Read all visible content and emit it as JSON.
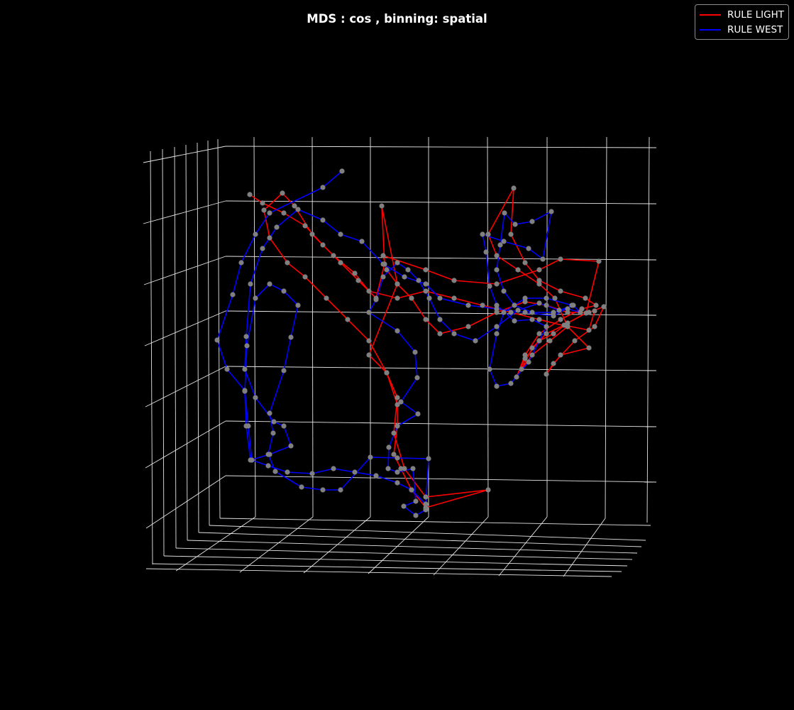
{
  "chart_data": {
    "type": "line",
    "projection": "3d",
    "title": "MDS : cos , binning: spatial",
    "xlabel": "",
    "ylabel": "",
    "zlabel": "",
    "grid": true,
    "background": "#000000",
    "point_color": "#808080",
    "legend_position": "top-right",
    "series": [
      {
        "name": "RULE LIGHT",
        "color": "#ff0000",
        "points": [
          [
            352,
            274
          ],
          [
            370,
            286
          ],
          [
            400,
            300
          ],
          [
            430,
            318
          ],
          [
            455,
            345
          ],
          [
            480,
            370
          ],
          [
            505,
            395
          ],
          [
            530,
            420
          ],
          [
            542,
            372
          ],
          [
            538,
            290
          ],
          [
            560,
            400
          ],
          [
            520,
            500
          ],
          [
            545,
            525
          ],
          [
            560,
            570
          ],
          [
            560,
            600
          ],
          [
            555,
            640
          ],
          [
            565,
            660
          ],
          [
            580,
            690
          ],
          [
            600,
            715
          ],
          [
            688,
            690
          ],
          [
            600,
            700
          ],
          [
            570,
            660
          ],
          [
            555,
            610
          ],
          [
            560,
            560
          ],
          [
            545,
            525
          ],
          [
            520,
            480
          ],
          [
            490,
            450
          ],
          [
            460,
            420
          ],
          [
            430,
            390
          ],
          [
            405,
            370
          ],
          [
            380,
            335
          ],
          [
            372,
            296
          ],
          [
            398,
            272
          ],
          [
            415,
            290
          ],
          [
            440,
            330
          ],
          [
            470,
            360
          ],
          [
            500,
            385
          ],
          [
            520,
            410
          ],
          [
            560,
            420
          ],
          [
            600,
            410
          ],
          [
            640,
            420
          ],
          [
            680,
            430
          ],
          [
            720,
            440
          ],
          [
            760,
            450
          ],
          [
            800,
            460
          ],
          [
            830,
            490
          ],
          [
            790,
            500
          ],
          [
            770,
            527
          ],
          [
            780,
            512
          ],
          [
            810,
            480
          ],
          [
            838,
            460
          ],
          [
            851,
            432
          ],
          [
            830,
            440
          ],
          [
            800,
            440
          ],
          [
            770,
            430
          ],
          [
            740,
            425
          ],
          [
            700,
            440
          ],
          [
            660,
            460
          ],
          [
            620,
            470
          ],
          [
            600,
            450
          ],
          [
            580,
            420
          ],
          [
            560,
            400
          ],
          [
            545,
            380
          ],
          [
            540,
            360
          ],
          [
            600,
            380
          ],
          [
            640,
            395
          ],
          [
            700,
            400
          ],
          [
            760,
            380
          ],
          [
            790,
            365
          ],
          [
            844,
            368
          ],
          [
            826,
            441
          ],
          [
            800,
            455
          ],
          [
            780,
            470
          ],
          [
            760,
            480
          ],
          [
            740,
            505
          ],
          [
            728,
            531
          ],
          [
            740,
            500
          ],
          [
            760,
            470
          ],
          [
            790,
            450
          ],
          [
            820,
            435
          ],
          [
            840,
            430
          ],
          [
            825,
            420
          ],
          [
            790,
            410
          ],
          [
            760,
            395
          ],
          [
            740,
            370
          ],
          [
            720,
            330
          ],
          [
            724,
            265
          ],
          [
            688,
            330
          ],
          [
            700,
            360
          ],
          [
            730,
            380
          ],
          [
            760,
            400
          ],
          [
            782,
            420
          ],
          [
            800,
            460
          ],
          [
            775,
            480
          ],
          [
            750,
            500
          ],
          [
            735,
            520
          ],
          [
            750,
            490
          ],
          [
            770,
            470
          ],
          [
            795,
            458
          ],
          [
            830,
            465
          ],
          [
            838,
            438
          ]
        ]
      },
      {
        "name": "RULE WEST",
        "color": "#0000ff",
        "points": [
          [
            482,
            241
          ],
          [
            455,
            264
          ],
          [
            380,
            300
          ],
          [
            360,
            330
          ],
          [
            340,
            370
          ],
          [
            328,
            415
          ],
          [
            306,
            479
          ],
          [
            320,
            520
          ],
          [
            345,
            550
          ],
          [
            350,
            600
          ],
          [
            355,
            648
          ],
          [
            378,
            656
          ],
          [
            405,
            665
          ],
          [
            440,
            667
          ],
          [
            470,
            660
          ],
          [
            500,
            665
          ],
          [
            530,
            670
          ],
          [
            560,
            680
          ],
          [
            580,
            690
          ],
          [
            600,
            710
          ],
          [
            604,
            646
          ],
          [
            560,
            645
          ],
          [
            522,
            644
          ],
          [
            480,
            690
          ],
          [
            455,
            690
          ],
          [
            425,
            686
          ],
          [
            388,
            664
          ],
          [
            378,
            640
          ],
          [
            385,
            610
          ],
          [
            380,
            582
          ],
          [
            400,
            522
          ],
          [
            410,
            475
          ],
          [
            420,
            430
          ],
          [
            400,
            410
          ],
          [
            380,
            400
          ],
          [
            360,
            420
          ],
          [
            348,
            487
          ],
          [
            345,
            551
          ],
          [
            347,
            600
          ],
          [
            353,
            648
          ],
          [
            380,
            640
          ],
          [
            410,
            628
          ],
          [
            400,
            600
          ],
          [
            386,
            594
          ],
          [
            360,
            560
          ],
          [
            345,
            520
          ],
          [
            347,
            474
          ],
          [
            353,
            400
          ],
          [
            370,
            350
          ],
          [
            390,
            320
          ],
          [
            420,
            295
          ],
          [
            455,
            310
          ],
          [
            480,
            330
          ],
          [
            510,
            340
          ],
          [
            540,
            372
          ],
          [
            570,
            390
          ],
          [
            600,
            400
          ],
          [
            620,
            420
          ],
          [
            660,
            430
          ],
          [
            700,
            435
          ],
          [
            740,
            440
          ],
          [
            780,
            445
          ],
          [
            806,
            430
          ],
          [
            770,
            420
          ],
          [
            740,
            420
          ],
          [
            710,
            440
          ],
          [
            700,
            470
          ],
          [
            690,
            520
          ],
          [
            700,
            544
          ],
          [
            720,
            540
          ],
          [
            745,
            510
          ],
          [
            760,
            480
          ],
          [
            770,
            460
          ],
          [
            750,
            450
          ],
          [
            725,
            452
          ],
          [
            700,
            430
          ],
          [
            690,
            403
          ],
          [
            685,
            355
          ],
          [
            680,
            330
          ],
          [
            710,
            340
          ],
          [
            745,
            350
          ],
          [
            765,
            365
          ],
          [
            777,
            298
          ],
          [
            750,
            312
          ],
          [
            726,
            316
          ],
          [
            711,
            300
          ],
          [
            705,
            345
          ],
          [
            700,
            380
          ],
          [
            710,
            410
          ],
          [
            725,
            430
          ],
          [
            750,
            440
          ],
          [
            780,
            440
          ],
          [
            800,
            435
          ],
          [
            818,
            440
          ],
          [
            808,
            430
          ],
          [
            788,
            437
          ],
          [
            760,
            427
          ],
          [
            730,
            437
          ],
          [
            700,
            460
          ],
          [
            670,
            480
          ],
          [
            640,
            470
          ],
          [
            620,
            450
          ],
          [
            605,
            420
          ],
          [
            590,
            395
          ],
          [
            575,
            380
          ],
          [
            560,
            370
          ],
          [
            540,
            390
          ],
          [
            530,
            422
          ],
          [
            520,
            440
          ],
          [
            560,
            466
          ],
          [
            585,
            496
          ],
          [
            588,
            532
          ],
          [
            565,
            566
          ],
          [
            589,
            583
          ],
          [
            560,
            600
          ],
          [
            548,
            630
          ],
          [
            547,
            660
          ],
          [
            560,
            665
          ],
          [
            582,
            660
          ],
          [
            586,
            706
          ],
          [
            569,
            713
          ],
          [
            586,
            726
          ],
          [
            600,
            718
          ]
        ]
      }
    ]
  }
}
